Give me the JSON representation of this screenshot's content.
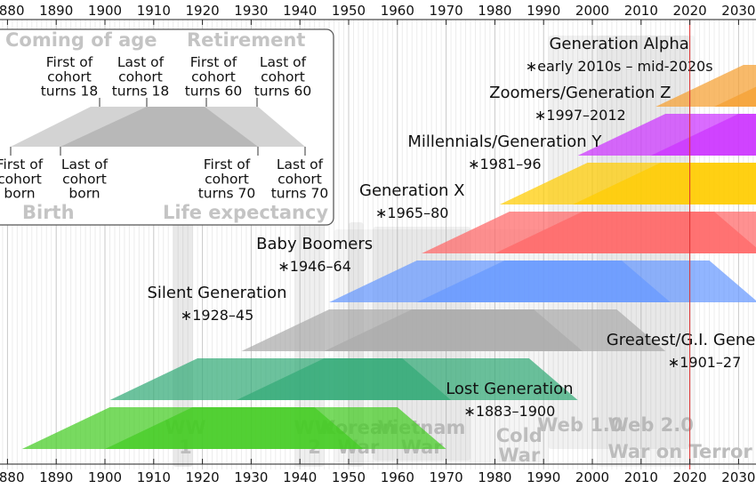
{
  "chart_data": {
    "type": "timeline",
    "xlim": [
      1878,
      2036
    ],
    "ticks": [
      1880,
      1890,
      1900,
      1910,
      1920,
      1930,
      1940,
      1950,
      1960,
      1970,
      1980,
      1990,
      2000,
      2010,
      2020,
      2030
    ],
    "current_year": 2020,
    "generations": [
      {
        "name": "Generation Alpha",
        "dates": "∗early 2010s – mid-2020s",
        "start": 2013,
        "end": 2025,
        "color": "#f5a030"
      },
      {
        "name": "Zoomers/Generation Z",
        "dates": "∗1997–2012",
        "start": 1997,
        "end": 2012,
        "color": "#cc33ff"
      },
      {
        "name": "Millennials/Generation Y",
        "dates": "∗1981–96",
        "start": 1981,
        "end": 1996,
        "color": "#ffcc00"
      },
      {
        "name": "Generation X",
        "dates": "∗1965–80",
        "start": 1965,
        "end": 1980,
        "color": "#ff6666"
      },
      {
        "name": "Baby Boomers",
        "dates": "∗1946–64",
        "start": 1946,
        "end": 1964,
        "color": "#6699ff"
      },
      {
        "name": "Silent Generation",
        "dates": "∗1928–45",
        "start": 1928,
        "end": 1945,
        "color": "#aaaaaa"
      },
      {
        "name": "Greatest/G.I. Generation",
        "dates": "∗1901–27",
        "start": 1901,
        "end": 1927,
        "color": "#33aa77"
      },
      {
        "name": "Lost Generation",
        "dates": "∗1883–1900",
        "start": 1883,
        "end": 1900,
        "color": "#44cc22"
      }
    ],
    "events": [
      {
        "label": "WW\n1",
        "start": 1914,
        "end": 1918
      },
      {
        "label": "WW\n2",
        "start": 1939,
        "end": 1945
      },
      {
        "label": "Korean\nWar",
        "start": 1950,
        "end": 1953
      },
      {
        "label": "Vietnam\nWar",
        "start": 1955,
        "end": 1975
      },
      {
        "label": "Cold\nWar",
        "start": 1947,
        "end": 1991
      },
      {
        "label": "Web 1.0",
        "start": 1991,
        "end": 2004
      },
      {
        "label": "Web 2.0",
        "start": 2004,
        "end": 2020
      },
      {
        "label": "War on Terror",
        "start": 2001,
        "end": 2021
      }
    ],
    "legend": {
      "coming_of_age": "Coming of age",
      "retirement": "Retirement",
      "first18": "First of\ncohort\nturns 18",
      "last18": "Last of\ncohort\nturns 18",
      "first60": "First of\ncohort\nturns 60",
      "last60": "Last of\ncohort\nturns 60",
      "first_born": "First of\ncohort\nborn",
      "last_born": "Last of\ncohort\nborn",
      "first70": "First of\ncohort\nturns 70",
      "last70": "Last of\ncohort\nturns 70",
      "birth": "Birth",
      "life_expectancy": "Life expectancy"
    }
  }
}
